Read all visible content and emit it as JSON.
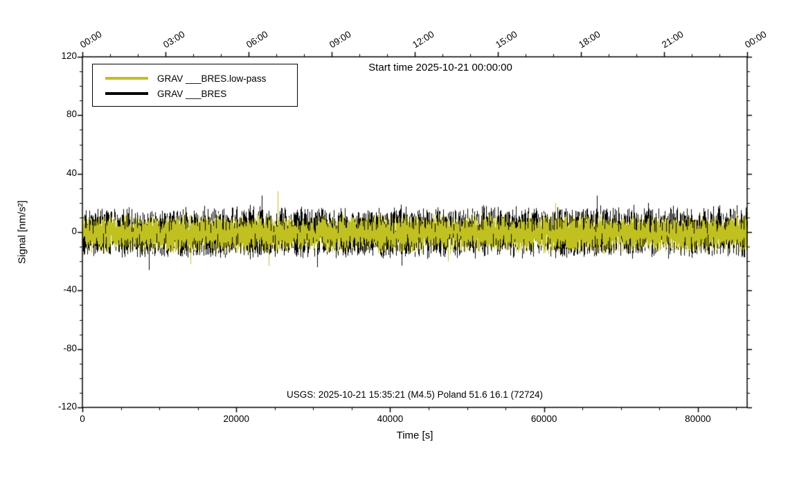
{
  "chart_data": {
    "type": "line",
    "title": "Start time 2025-10-21 00:00:00",
    "xlabel": "Time [s]",
    "ylabel": "Signal [nm/s²]",
    "annotation": "USGS: 2025-10-21 15:35:21 (M4.5) Poland 51.6 16.1 (72724)",
    "xlim": [
      0,
      86400
    ],
    "ylim": [
      -120,
      120
    ],
    "grid": false,
    "x_tick_values": [
      0,
      20000,
      40000,
      60000,
      80000
    ],
    "x_tick_labels": [
      "0",
      "20000",
      "40000",
      "60000",
      "80000"
    ],
    "x_major_interval": 20000,
    "x_minor_interval": 5000,
    "y_tick_values": [
      120,
      80,
      40,
      0,
      -40,
      -80,
      -120
    ],
    "y_tick_labels": [
      "120",
      "80",
      "40",
      "0",
      "-40",
      "-80",
      "-120"
    ],
    "y_major_interval": 40,
    "y_minor_interval": 10,
    "top_tick_labels": [
      "00:00",
      "03:00",
      "06:00",
      "09:00",
      "12:00",
      "15:00",
      "18:00",
      "21:00",
      "00:00"
    ],
    "top_tick_interval": 10800,
    "top_minor_interval": 3600,
    "legend": [
      {
        "label": "GRAV ___BRES.low-pass",
        "color": "#c0c020"
      },
      {
        "label": "GRAV ___BRES",
        "color": "#000000"
      }
    ],
    "series": [
      {
        "name": "GRAV ___BRES",
        "color": "#000000",
        "amplitude": 10.5,
        "offset": 0,
        "spike_prob": 0.002,
        "seed": 1337,
        "spikes": [
          {
            "t": 23300,
            "v": 25
          },
          {
            "t": 66900,
            "v": 25
          },
          {
            "t": 8600,
            "v": -26
          },
          {
            "t": 30500,
            "v": -24
          },
          {
            "t": 41500,
            "v": -23
          },
          {
            "t": 73500,
            "v": 20
          }
        ]
      },
      {
        "name": "GRAV ___BRES.low-pass",
        "color": "#c0c020",
        "amplitude": 8,
        "offset": -1,
        "spike_prob": 0.0015,
        "seed": 99,
        "spikes": [
          {
            "t": 25400,
            "v": 28
          },
          {
            "t": 24200,
            "v": -23
          },
          {
            "t": 14000,
            "v": -22
          },
          {
            "t": 61500,
            "v": 20
          },
          {
            "t": 47500,
            "v": -20
          }
        ]
      }
    ]
  }
}
